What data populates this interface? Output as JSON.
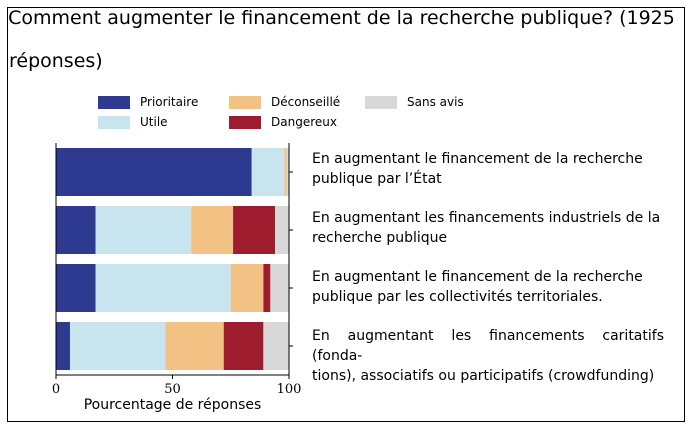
{
  "title_part1": "Comment augmenter le financement de la recherche publique? (1925",
  "title_part2": "réponses)",
  "chart_data": {
    "type": "bar",
    "orientation": "horizontal",
    "stacked": true,
    "title": "Comment augmenter le financement de la recherche publique? (1925 réponses)",
    "xlabel": "Pourcentage de réponses",
    "ylabel": "",
    "xlim": [
      0,
      100
    ],
    "xticks": [
      "0",
      "50",
      "100"
    ],
    "grid": false,
    "legend_position": "top",
    "categories": [
      "En augmentant le financement de la recherche publique par l’État",
      "En augmentant les financements industriels de la recherche publique",
      "En augmentant le financement de la recherche publique par les collectivités territoriales.",
      "En augmentant les financements caritatifs (fonda-tions), associatifs ou participatifs (crowdfunding)"
    ],
    "series": [
      {
        "name": "Prioritaire",
        "color": "#2e3a8f",
        "values": [
          84,
          17,
          17,
          6
        ]
      },
      {
        "name": "Utile",
        "color": "#c8e4ef",
        "values": [
          14,
          41,
          58,
          41
        ]
      },
      {
        "name": "Déconseillé",
        "color": "#f1c283",
        "values": [
          1,
          18,
          14,
          25
        ]
      },
      {
        "name": "Dangereux",
        "color": "#9d1d2e",
        "values": [
          0,
          18,
          3,
          17
        ]
      },
      {
        "name": "Sans avis",
        "color": "#d8d8d8",
        "values": [
          1,
          6,
          8,
          11
        ]
      }
    ]
  },
  "category_lines": [
    [
      "En augmentant le financement de la recherche",
      "publique par l’État"
    ],
    [
      "En augmentant les financements industriels de la",
      "recherche publique"
    ],
    [
      "En augmentant le financement de la recherche",
      "publique par les collectivités territoriales."
    ],
    [
      "En augmentant les financements caritatifs (fonda-",
      "tions), associatifs ou participatifs (crowdfunding)"
    ]
  ]
}
